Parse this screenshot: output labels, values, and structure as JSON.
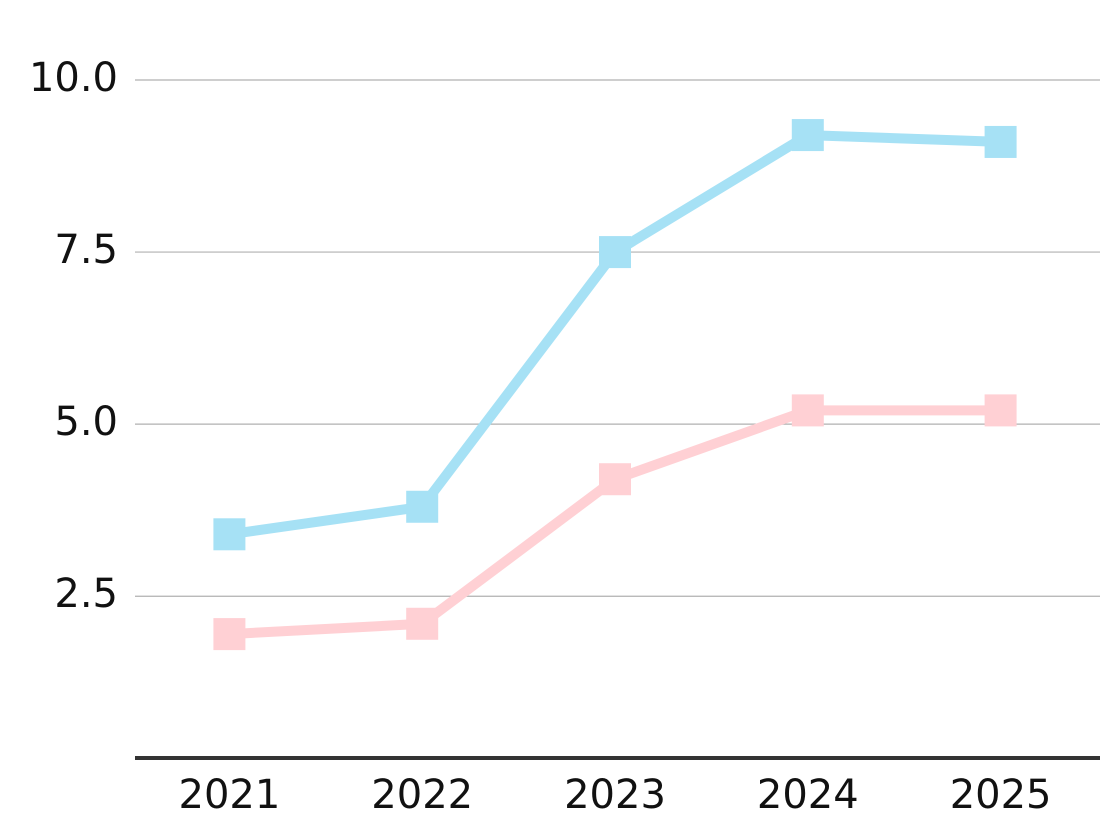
{
  "chart_data": {
    "type": "line",
    "categories": [
      "2021",
      "2022",
      "2023",
      "2024",
      "2025"
    ],
    "series": [
      {
        "color": "#a6e1f5",
        "values": [
          3.4,
          3.8,
          7.5,
          9.2,
          9.1
        ]
      },
      {
        "color": "#ffd0d4",
        "values": [
          1.95,
          2.1,
          4.2,
          5.2,
          5.2
        ]
      }
    ],
    "ylim": [
      0.15,
      10
    ],
    "yticks": [
      {
        "value": 2.5,
        "label": "2.5"
      },
      {
        "value": 5,
        "label": "5.0"
      },
      {
        "value": 7.5,
        "label": "7.5"
      },
      {
        "value": 10,
        "label": "10.0"
      }
    ],
    "grid": true
  }
}
